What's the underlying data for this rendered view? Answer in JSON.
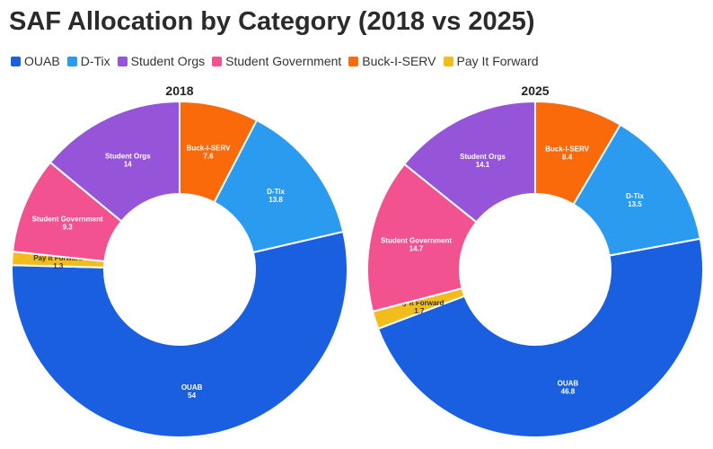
{
  "chart_data": {
    "type": "pie",
    "title": "SAF Allocation by Category (2018 vs 2025)",
    "legend": [
      {
        "name": "OUAB",
        "color": "#1a5fe0"
      },
      {
        "name": "D-Tix",
        "color": "#2b9bf0"
      },
      {
        "name": "Student Orgs",
        "color": "#9655d8"
      },
      {
        "name": "Student Government",
        "color": "#f2528f"
      },
      {
        "name": "Buck-I-SERV",
        "color": "#fa6a0a"
      },
      {
        "name": "Pay It Forward",
        "color": "#f2bd1c"
      }
    ],
    "panels": [
      {
        "title": "2018",
        "slices": [
          {
            "name": "Buck-I-SERV",
            "value": 7.6,
            "label": "7.6"
          },
          {
            "name": "D-Tix",
            "value": 13.8,
            "label": "13.8"
          },
          {
            "name": "OUAB",
            "value": 54,
            "label": "54"
          },
          {
            "name": "Pay It Forward",
            "value": 1.3,
            "label": "1.3"
          },
          {
            "name": "Student Government",
            "value": 9.3,
            "label": "9.3"
          },
          {
            "name": "Student Orgs",
            "value": 14,
            "label": "14"
          }
        ]
      },
      {
        "title": "2025",
        "slices": [
          {
            "name": "Buck-I-SERV",
            "value": 8.4,
            "label": "8.4"
          },
          {
            "name": "D-Tix",
            "value": 13.5,
            "label": "13.5"
          },
          {
            "name": "OUAB",
            "value": 46.8,
            "label": "46.8"
          },
          {
            "name": "Pay It Forward",
            "value": 1.7,
            "label": "1.7"
          },
          {
            "name": "Student Government",
            "value": 14.7,
            "label": "14.7"
          },
          {
            "name": "Student Orgs",
            "value": 14.1,
            "label": "14.1"
          }
        ]
      }
    ]
  }
}
